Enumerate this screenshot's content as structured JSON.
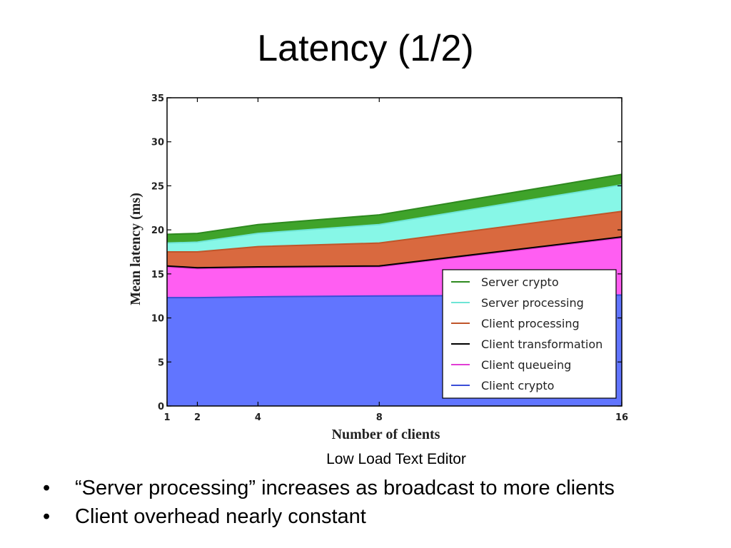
{
  "slide": {
    "title": "Latency (1/2)",
    "caption": "Low Load Text Editor",
    "bullets": [
      "“Server processing” increases as broadcast  to more clients",
      "Client overhead nearly constant"
    ],
    "bullet_symbol": "•"
  },
  "chart_data": {
    "type": "area",
    "stacked": true,
    "title": "",
    "xlabel": "Number of clients",
    "ylabel": "Mean latency (ms)",
    "x": [
      1,
      2,
      4,
      8,
      16
    ],
    "x_tick_labels": [
      "1",
      "2",
      "4",
      "8",
      "16"
    ],
    "y_ticks": [
      0,
      5,
      10,
      15,
      20,
      25,
      30,
      35
    ],
    "ylim": [
      0,
      35
    ],
    "xlim": [
      1,
      16
    ],
    "grid": false,
    "legend_position": "lower-right",
    "series": [
      {
        "name": "Client crypto",
        "color": "#6175ff",
        "line_color": "#3a4ed8",
        "values": [
          12.3,
          12.3,
          12.4,
          12.5,
          12.6
        ]
      },
      {
        "name": "Client queueing",
        "color": "#ff5ef2",
        "line_color": "#e23dd4",
        "values": [
          3.5,
          3.3,
          3.3,
          3.3,
          6.5
        ]
      },
      {
        "name": "Client transformation",
        "color": "#ff5ef2",
        "line_color": "#000000",
        "values": [
          0.1,
          0.1,
          0.1,
          0.1,
          0.1
        ]
      },
      {
        "name": "Client processing",
        "color": "#d9693f",
        "line_color": "#c0552a",
        "values": [
          1.6,
          1.8,
          2.3,
          2.6,
          2.9
        ]
      },
      {
        "name": "Server processing",
        "color": "#87f7e7",
        "line_color": "#6ee5d6",
        "values": [
          1.0,
          1.1,
          1.5,
          2.1,
          3.0
        ]
      },
      {
        "name": "Server crypto",
        "color": "#3fa32a",
        "line_color": "#2e8a1f",
        "values": [
          1.0,
          1.0,
          1.0,
          1.1,
          1.2
        ]
      }
    ],
    "legend_order": [
      "Server crypto",
      "Server processing",
      "Client processing",
      "Client transformation",
      "Client queueing",
      "Client crypto"
    ]
  }
}
